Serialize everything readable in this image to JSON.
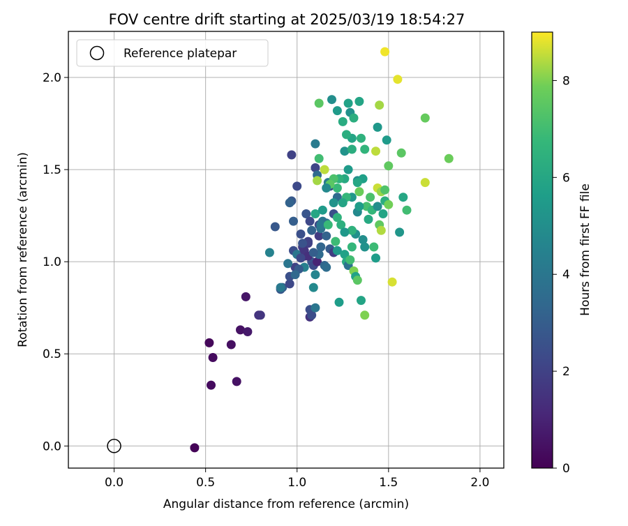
{
  "chart_data": {
    "type": "scatter",
    "title": "FOV centre drift starting at 2025/03/19 18:54:27",
    "xlabel": "Angular distance from reference (arcmin)",
    "ylabel": "Rotation from reference (arcmin)",
    "xlim": [
      -0.25,
      2.13
    ],
    "ylim": [
      -0.12,
      2.25
    ],
    "xticks": [
      "0.0",
      "0.5",
      "1.0",
      "1.5",
      "2.0"
    ],
    "yticks": [
      "0.0",
      "0.5",
      "1.0",
      "1.5",
      "2.0"
    ],
    "grid": true,
    "legend": {
      "position": "top-left",
      "entries": [
        "Reference platepar"
      ]
    },
    "reference_point": {
      "x": 0.0,
      "y": 0.0
    },
    "colorbar": {
      "label": "Hours from first FF file",
      "min": 0,
      "max": 9,
      "ticks": [
        "0",
        "2",
        "4",
        "6",
        "8"
      ],
      "colormap": "viridis"
    },
    "points": [
      [
        0.44,
        -0.01,
        0.1
      ],
      [
        0.52,
        0.56,
        0.2
      ],
      [
        0.54,
        0.48,
        0.3
      ],
      [
        0.53,
        0.33,
        0.3
      ],
      [
        0.64,
        0.55,
        0.4
      ],
      [
        0.67,
        0.35,
        0.5
      ],
      [
        0.69,
        0.63,
        0.5
      ],
      [
        0.72,
        0.81,
        0.6
      ],
      [
        0.73,
        0.62,
        0.7
      ],
      [
        0.79,
        0.71,
        1.5
      ],
      [
        0.8,
        0.71,
        1.6
      ],
      [
        0.91,
        0.85,
        2.8
      ],
      [
        0.92,
        0.86,
        3.0
      ],
      [
        0.96,
        0.88,
        2.2
      ],
      [
        0.96,
        0.92,
        2.5
      ],
      [
        0.97,
        1.58,
        2.0
      ],
      [
        0.98,
        1.22,
        3.0
      ],
      [
        0.97,
        1.33,
        2.8
      ],
      [
        0.96,
        1.32,
        3.2
      ],
      [
        0.98,
        1.06,
        2.4
      ],
      [
        1.0,
        1.41,
        2.3
      ],
      [
        0.99,
        0.97,
        2.0
      ],
      [
        1.0,
        1.04,
        2.8
      ],
      [
        1.02,
        1.15,
        2.5
      ],
      [
        1.03,
        1.08,
        1.8
      ],
      [
        1.04,
        1.03,
        1.2
      ],
      [
        1.05,
        1.26,
        2.7
      ],
      [
        1.06,
        1.1,
        1.9
      ],
      [
        1.07,
        1.22,
        2.2
      ],
      [
        1.08,
        1.17,
        3.2
      ],
      [
        1.08,
        1.0,
        2.6
      ],
      [
        1.07,
        0.74,
        2.4
      ],
      [
        1.07,
        0.7,
        1.5
      ],
      [
        1.08,
        0.71,
        2.4
      ],
      [
        1.09,
        0.98,
        2.3
      ],
      [
        1.1,
        1.51,
        2.1
      ],
      [
        1.11,
        1.47,
        3.5
      ],
      [
        1.11,
        1.0,
        1.0
      ],
      [
        1.12,
        1.14,
        1.8
      ],
      [
        1.12,
        1.2,
        2.3
      ],
      [
        1.13,
        1.18,
        3.8
      ],
      [
        1.14,
        1.22,
        4.0
      ],
      [
        1.15,
        0.98,
        3.3
      ],
      [
        1.16,
        1.21,
        3.8
      ],
      [
        1.17,
        1.43,
        4.2
      ],
      [
        1.18,
        1.07,
        2.9
      ],
      [
        1.18,
        1.41,
        2.2
      ],
      [
        1.2,
        1.26,
        2.5
      ],
      [
        1.2,
        1.05,
        1.8
      ],
      [
        1.22,
        1.35,
        3.5
      ],
      [
        1.1,
        1.64,
        4.2
      ],
      [
        1.12,
        1.04,
        3.5
      ],
      [
        1.13,
        1.2,
        4.1
      ],
      [
        1.16,
        0.97,
        3.6
      ],
      [
        1.1,
        0.75,
        4.0
      ],
      [
        1.1,
        0.93,
        4.6
      ],
      [
        1.09,
        0.86,
        4.8
      ],
      [
        1.04,
        0.97,
        4.4
      ],
      [
        1.0,
        1.04,
        4.0
      ],
      [
        0.95,
        0.99,
        4.0
      ],
      [
        0.91,
        0.86,
        4.1
      ],
      [
        0.85,
        1.05,
        4.5
      ],
      [
        0.88,
        1.19,
        2.8
      ],
      [
        1.19,
        1.88,
        5.0
      ],
      [
        1.22,
        1.82,
        5.5
      ],
      [
        1.25,
        1.76,
        6.2
      ],
      [
        1.26,
        1.6,
        5.2
      ],
      [
        1.28,
        1.86,
        5.8
      ],
      [
        1.29,
        1.81,
        5.1
      ],
      [
        1.3,
        1.67,
        5.9
      ],
      [
        1.27,
        1.69,
        6.3
      ],
      [
        1.31,
        1.78,
        6.3
      ],
      [
        1.33,
        1.44,
        5.0
      ],
      [
        1.34,
        1.87,
        5.9
      ],
      [
        1.35,
        1.67,
        6.5
      ],
      [
        1.36,
        1.45,
        5.7
      ],
      [
        1.37,
        1.61,
        6.6
      ],
      [
        1.33,
        1.27,
        4.8
      ],
      [
        1.32,
        1.15,
        5.1
      ],
      [
        1.3,
        1.35,
        5.4
      ],
      [
        1.28,
        1.5,
        5.5
      ],
      [
        1.27,
        1.35,
        6.7
      ],
      [
        1.26,
        1.45,
        6.1
      ],
      [
        1.25,
        1.32,
        5.9
      ],
      [
        1.24,
        1.2,
        6.4
      ],
      [
        1.23,
        1.45,
        6.5
      ],
      [
        1.22,
        1.4,
        6.8
      ],
      [
        1.21,
        1.11,
        6.9
      ],
      [
        1.2,
        1.45,
        7.2
      ],
      [
        1.18,
        1.42,
        7.5
      ],
      [
        1.17,
        1.2,
        6.8
      ],
      [
        1.12,
        1.56,
        7.0
      ],
      [
        1.12,
        1.86,
        7.5
      ],
      [
        1.1,
        1.26,
        6.0
      ],
      [
        1.11,
        1.44,
        8.3
      ],
      [
        1.15,
        1.5,
        8.5
      ],
      [
        1.14,
        1.28,
        5.5
      ],
      [
        1.22,
        1.06,
        5.4
      ],
      [
        1.23,
        0.78,
        5.6
      ],
      [
        1.26,
        1.04,
        5.8
      ],
      [
        1.27,
        1.0,
        6.2
      ],
      [
        1.28,
        0.98,
        3.8
      ],
      [
        1.29,
        1.01,
        7.0
      ],
      [
        1.3,
        1.17,
        6.5
      ],
      [
        1.3,
        1.08,
        6.7
      ],
      [
        1.31,
        0.95,
        8.0
      ],
      [
        1.32,
        0.92,
        5.8
      ],
      [
        1.33,
        0.9,
        7.5
      ],
      [
        1.34,
        1.38,
        7.8
      ],
      [
        1.35,
        0.79,
        5.9
      ],
      [
        1.36,
        1.12,
        5.0
      ],
      [
        1.37,
        1.08,
        5.1
      ],
      [
        1.38,
        1.3,
        7.1
      ],
      [
        1.39,
        1.23,
        6.1
      ],
      [
        1.4,
        1.35,
        7.2
      ],
      [
        1.41,
        1.28,
        6.7
      ],
      [
        1.42,
        1.08,
        6.9
      ],
      [
        1.43,
        1.02,
        5.6
      ],
      [
        1.37,
        0.71,
        8.0
      ],
      [
        1.44,
        1.73,
        5.4
      ],
      [
        1.43,
        1.6,
        8.5
      ],
      [
        1.45,
        1.85,
        8.3
      ],
      [
        1.44,
        1.4,
        8.6
      ],
      [
        1.46,
        1.38,
        8.2
      ],
      [
        1.45,
        1.2,
        7.6
      ],
      [
        1.46,
        1.17,
        8.4
      ],
      [
        1.47,
        1.26,
        5.9
      ],
      [
        1.48,
        1.33,
        6.3
      ],
      [
        1.48,
        1.39,
        7.3
      ],
      [
        1.49,
        1.66,
        5.5
      ],
      [
        1.5,
        1.52,
        7.6
      ],
      [
        1.5,
        1.31,
        7.9
      ],
      [
        1.52,
        0.89,
        8.7
      ],
      [
        1.48,
        2.14,
        8.9
      ],
      [
        1.55,
        1.99,
        8.8
      ],
      [
        1.56,
        1.16,
        5.3
      ],
      [
        1.57,
        1.59,
        7.5
      ],
      [
        1.58,
        1.35,
        6.0
      ],
      [
        1.6,
        1.28,
        7.0
      ],
      [
        1.7,
        1.78,
        7.7
      ],
      [
        1.7,
        1.43,
        8.6
      ],
      [
        1.83,
        1.56,
        7.8
      ],
      [
        1.3,
        1.61,
        6.3
      ],
      [
        1.33,
        1.43,
        6.0
      ],
      [
        1.26,
        1.16,
        5.4
      ],
      [
        1.2,
        1.32,
        5.2
      ],
      [
        1.16,
        1.4,
        4.8
      ],
      [
        1.22,
        1.24,
        6.5
      ],
      [
        1.34,
        1.3,
        5.6
      ],
      [
        1.44,
        1.3,
        5.0
      ],
      [
        1.06,
        1.11,
        2.0
      ],
      [
        1.04,
        1.06,
        1.6
      ],
      [
        1.06,
        1.03,
        1.4
      ],
      [
        1.02,
        1.02,
        2.2
      ],
      [
        1.03,
        1.1,
        2.6
      ],
      [
        1.09,
        1.05,
        3.0
      ],
      [
        1.16,
        1.14,
        3.2
      ],
      [
        1.13,
        1.08,
        3.3
      ],
      [
        1.01,
        0.96,
        2.9
      ],
      [
        0.99,
        0.93,
        3.4
      ]
    ]
  }
}
